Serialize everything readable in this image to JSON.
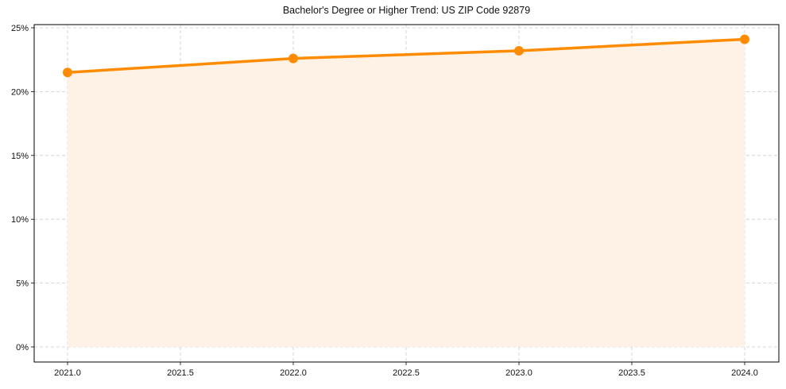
{
  "chart_data": {
    "type": "line",
    "title": "Bachelor's Degree or Higher Trend: US ZIP Code 92879",
    "xlabel": "",
    "ylabel": "",
    "x": [
      2021.0,
      2022.0,
      2023.0,
      2024.0
    ],
    "series": [
      {
        "name": "Bachelor's Degree or Higher",
        "values": [
          21.5,
          22.6,
          23.2,
          24.1
        ],
        "color": "#FF8C00",
        "fill_color": "#FEF1E5",
        "marker": "circle"
      }
    ],
    "xlim": [
      2020.85,
      2024.15
    ],
    "ylim": [
      -1.2,
      25.3
    ],
    "xticks": [
      "2021.0",
      "2021.5",
      "2022.0",
      "2022.5",
      "2023.0",
      "2023.5",
      "2024.0"
    ],
    "yticks": [
      "0%",
      "5%",
      "10%",
      "15%",
      "20%",
      "25%"
    ],
    "grid": true,
    "legend": null
  }
}
